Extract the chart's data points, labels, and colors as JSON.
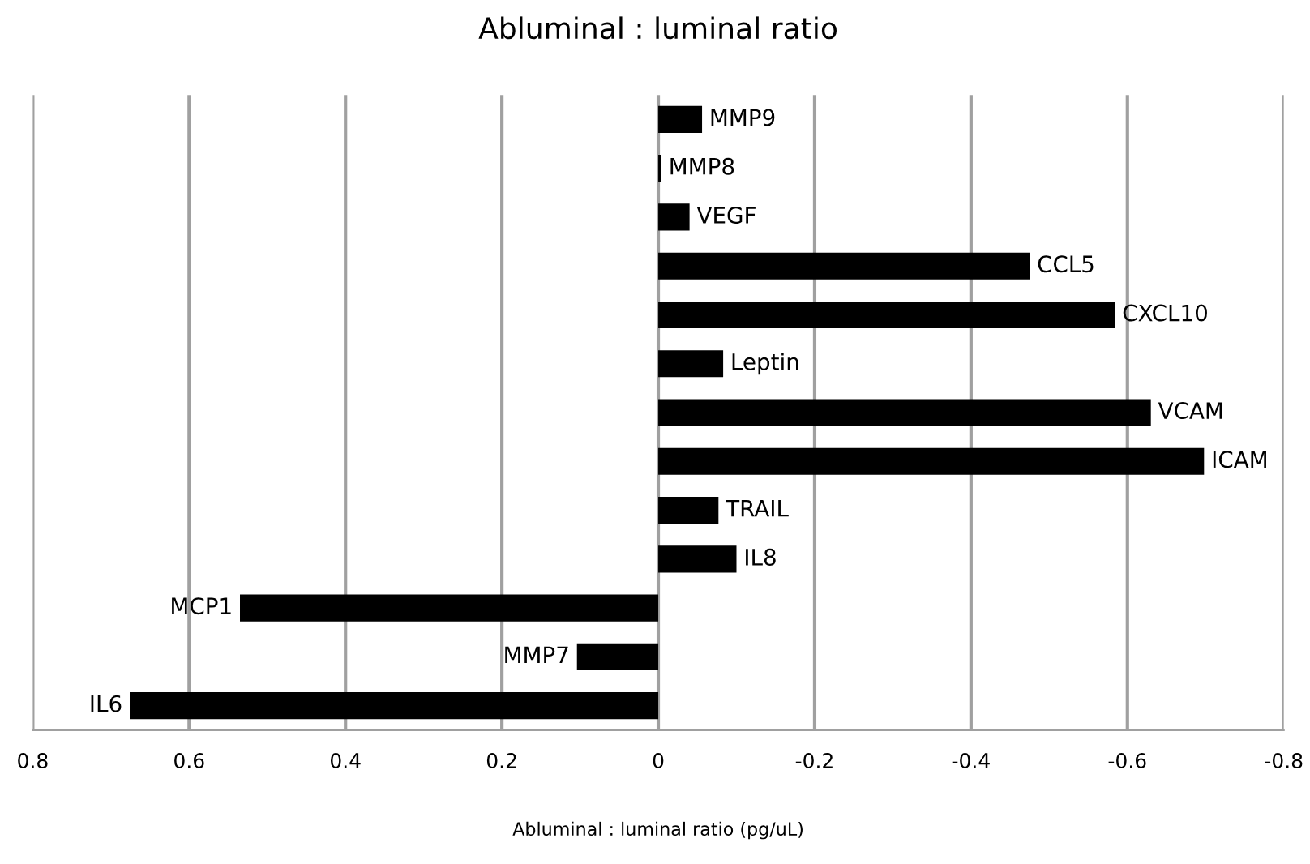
{
  "chart_data": {
    "type": "bar",
    "orientation": "horizontal",
    "title": "Abluminal : luminal ratio",
    "xlabel": "Abluminal : luminal ratio (pg/uL)",
    "categories": [
      "MMP9",
      "MMP8",
      "VEGF",
      "CCL5",
      "CXCL10",
      "Leptin",
      "VCAM",
      "ICAM",
      "TRAIL",
      "IL8",
      "MCP1",
      "MMP7",
      "IL6"
    ],
    "values": [
      -0.056,
      -0.004,
      -0.04,
      -0.475,
      -0.584,
      -0.083,
      -0.63,
      -0.698,
      -0.077,
      -0.1,
      0.535,
      0.104,
      0.676
    ],
    "color": "#000000",
    "xlim": [
      0.8,
      -0.8
    ],
    "xticks": [
      0.8,
      0.6,
      0.4,
      0.2,
      0,
      -0.2,
      -0.4,
      -0.6,
      -0.8
    ],
    "grid": "x",
    "tick_labels": "x"
  }
}
